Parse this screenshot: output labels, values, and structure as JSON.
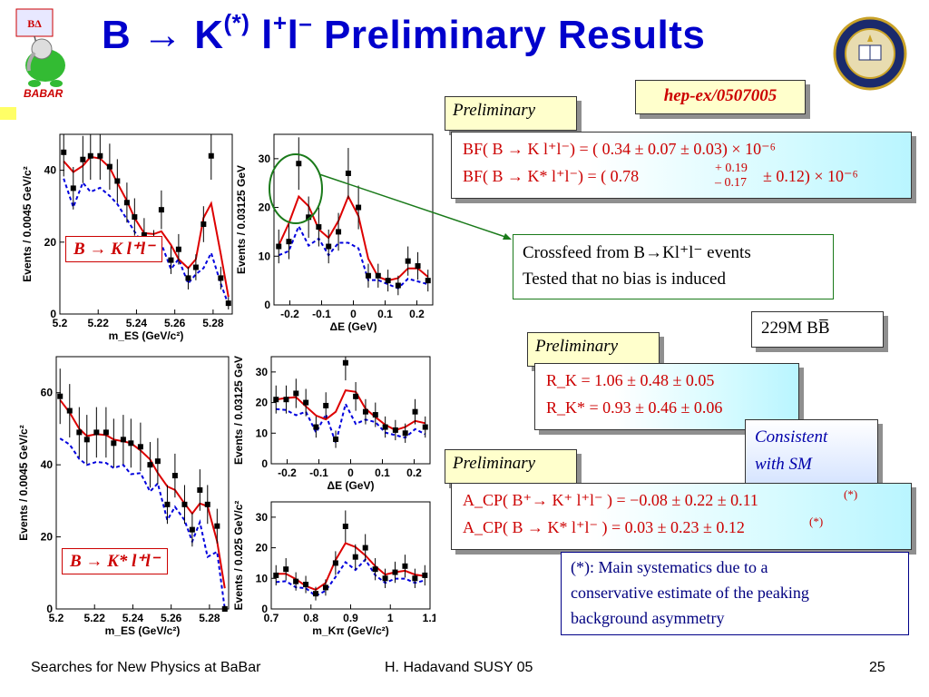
{
  "slide": {
    "title_main": "B ",
    "title_glyph": "→",
    "title_k": " K",
    "title_star": "(*)",
    "title_l1": " l",
    "title_plus": "+",
    "title_l2": "l",
    "title_minus": "–",
    "title_rest": " Preliminary Results",
    "logo_text": "BABAR",
    "reference": "hep-ex/0507005",
    "preliminary_label": "Preliminary",
    "bf_line1": "BF( B → K l⁺l⁻)  =  ( 0.34 ± 0.07 ± 0.03) × 10⁻⁶",
    "bf_line2_a": "BF( B → K* l⁺l⁻)  =  ( 0.78",
    "bf_line2_up": "+ 0.19",
    "bf_line2_down": "– 0.17",
    "bf_line2_b": "± 0.12) × 10⁻⁶",
    "crossfeed_line1": "Crossfeed from B→Kl⁺l⁻ events",
    "crossfeed_line2": "Tested that no bias is induced",
    "luminosity": "229M BB̅",
    "rk_line1": "R_K  =  1.06 ± 0.48 ± 0.05",
    "rk_line2": "R_K*  =  0.93 ± 0.46 ± 0.06",
    "consistent_line1": "Consistent",
    "consistent_line2": "with SM",
    "acp_line1": "A_CP( B⁺→ K⁺ l⁺l⁻ )  =  −0.08 ± 0.22 ± 0.11",
    "acp_line1_note": "(*)",
    "acp_line2": "A_CP( B → K* l⁺l⁻ )  =  0.03 ± 0.23 ± 0.12",
    "acp_line2_note": "(*)",
    "syst_line1": "(*): Main systematics due to a",
    "syst_line2": "conservative estimate of the peaking",
    "syst_line3": "background asymmetry",
    "plot_label_k": "B → K l⁺l⁻",
    "plot_label_kstar": "B → K* l⁺l⁻",
    "footer_left": "Searches for New Physics at BaBar",
    "footer_center": "H. Hadavand  SUSY 05",
    "footer_page": "25",
    "colors": {
      "title": "#0000cc",
      "accent_red": "#cc0000",
      "fit_red": "#dd0000",
      "bkg_blue": "#0000dd",
      "crossfeed_green": "#1a7a1a"
    }
  },
  "chart_data": [
    {
      "type": "scatter",
      "id": "k-mes",
      "ylabel": "Events / 0.0045 GeV/c²",
      "xlabel": "m_ES (GeV/c²)",
      "xlim": [
        5.2,
        5.29
      ],
      "ylim": [
        0,
        50
      ],
      "xticks": [
        "5.2",
        "5.22",
        "5.24",
        "5.26",
        "5.28"
      ],
      "yticks": [
        "0",
        "20",
        "40"
      ],
      "points": [
        [
          5.202,
          45
        ],
        [
          5.207,
          35
        ],
        [
          5.212,
          43
        ],
        [
          5.216,
          44
        ],
        [
          5.221,
          44
        ],
        [
          5.226,
          41
        ],
        [
          5.23,
          37
        ],
        [
          5.235,
          31
        ],
        [
          5.239,
          27
        ],
        [
          5.244,
          22
        ],
        [
          5.249,
          19
        ],
        [
          5.253,
          29
        ],
        [
          5.258,
          15
        ],
        [
          5.262,
          18
        ],
        [
          5.267,
          10
        ],
        [
          5.271,
          13
        ],
        [
          5.275,
          25
        ],
        [
          5.279,
          44
        ],
        [
          5.284,
          10
        ],
        [
          5.288,
          3
        ]
      ]
    },
    {
      "type": "scatter",
      "id": "k-de",
      "ylabel": "Events / 0.03125 GeV",
      "xlabel": "ΔE (GeV)",
      "xlim": [
        -0.25,
        0.25
      ],
      "ylim": [
        0,
        35
      ],
      "xticks": [
        "-0.2",
        "-0.1",
        "0",
        "0.1",
        "0.2"
      ],
      "yticks": [
        "0",
        "10",
        "20",
        "30"
      ],
      "points": [
        [
          -0.235,
          12
        ],
        [
          -0.203,
          13
        ],
        [
          -0.172,
          29
        ],
        [
          -0.141,
          18
        ],
        [
          -0.109,
          16
        ],
        [
          -0.078,
          12
        ],
        [
          -0.047,
          15
        ],
        [
          -0.016,
          27
        ],
        [
          0.016,
          20
        ],
        [
          0.047,
          6
        ],
        [
          0.078,
          6
        ],
        [
          0.109,
          5
        ],
        [
          0.141,
          4
        ],
        [
          0.172,
          9
        ],
        [
          0.203,
          8
        ],
        [
          0.235,
          5
        ]
      ]
    },
    {
      "type": "scatter",
      "id": "kstar-mes",
      "ylabel": "Events / 0.0045 GeV/c²",
      "xlabel": "m_ES (GeV/c²)",
      "xlim": [
        5.2,
        5.29
      ],
      "ylim": [
        0,
        70
      ],
      "xticks": [
        "5.2",
        "5.22",
        "5.24",
        "5.26",
        "5.28"
      ],
      "yticks": [
        "0",
        "20",
        "40",
        "60"
      ],
      "points": [
        [
          5.202,
          59
        ],
        [
          5.207,
          55
        ],
        [
          5.212,
          49
        ],
        [
          5.216,
          47
        ],
        [
          5.221,
          49
        ],
        [
          5.226,
          49
        ],
        [
          5.23,
          46
        ],
        [
          5.235,
          47
        ],
        [
          5.239,
          46
        ],
        [
          5.244,
          45
        ],
        [
          5.249,
          40
        ],
        [
          5.253,
          41
        ],
        [
          5.258,
          29
        ],
        [
          5.262,
          37
        ],
        [
          5.267,
          29
        ],
        [
          5.271,
          22
        ],
        [
          5.275,
          33
        ],
        [
          5.279,
          29
        ],
        [
          5.284,
          23
        ],
        [
          5.288,
          0
        ]
      ]
    },
    {
      "type": "scatter",
      "id": "kstar-de",
      "ylabel": "Events / 0.03125 GeV",
      "xlabel": "ΔE (GeV)",
      "xlim": [
        -0.25,
        0.25
      ],
      "ylim": [
        0,
        35
      ],
      "xticks": [
        "-0.2",
        "-0.1",
        "0",
        "0.1",
        "0.2"
      ],
      "yticks": [
        "0",
        "10",
        "20",
        "30"
      ],
      "points": [
        [
          -0.235,
          21
        ],
        [
          -0.203,
          21
        ],
        [
          -0.172,
          23
        ],
        [
          -0.141,
          20
        ],
        [
          -0.109,
          12
        ],
        [
          -0.078,
          19
        ],
        [
          -0.047,
          8
        ],
        [
          -0.016,
          33
        ],
        [
          0.016,
          22
        ],
        [
          0.047,
          17
        ],
        [
          0.078,
          16
        ],
        [
          0.109,
          12
        ],
        [
          0.141,
          11
        ],
        [
          0.172,
          10
        ],
        [
          0.203,
          17
        ],
        [
          0.235,
          12
        ]
      ]
    },
    {
      "type": "scatter",
      "id": "kstar-mkpi",
      "ylabel": "Events / 0.025 GeV/c²",
      "xlabel": "m_Kπ (GeV/c²)",
      "xlim": [
        0.7,
        1.1
      ],
      "ylim": [
        0,
        35
      ],
      "xticks": [
        "0.7",
        "0.8",
        "0.9",
        "1",
        "1.1"
      ],
      "yticks": [
        "0",
        "10",
        "20",
        "30"
      ],
      "points": [
        [
          0.712,
          11
        ],
        [
          0.737,
          13
        ],
        [
          0.762,
          9
        ],
        [
          0.787,
          8
        ],
        [
          0.812,
          5
        ],
        [
          0.837,
          7
        ],
        [
          0.862,
          15
        ],
        [
          0.887,
          27
        ],
        [
          0.912,
          17
        ],
        [
          0.937,
          20
        ],
        [
          0.962,
          13
        ],
        [
          0.987,
          10
        ],
        [
          1.012,
          12
        ],
        [
          1.037,
          14
        ],
        [
          1.062,
          10
        ],
        [
          1.087,
          11
        ]
      ]
    }
  ]
}
